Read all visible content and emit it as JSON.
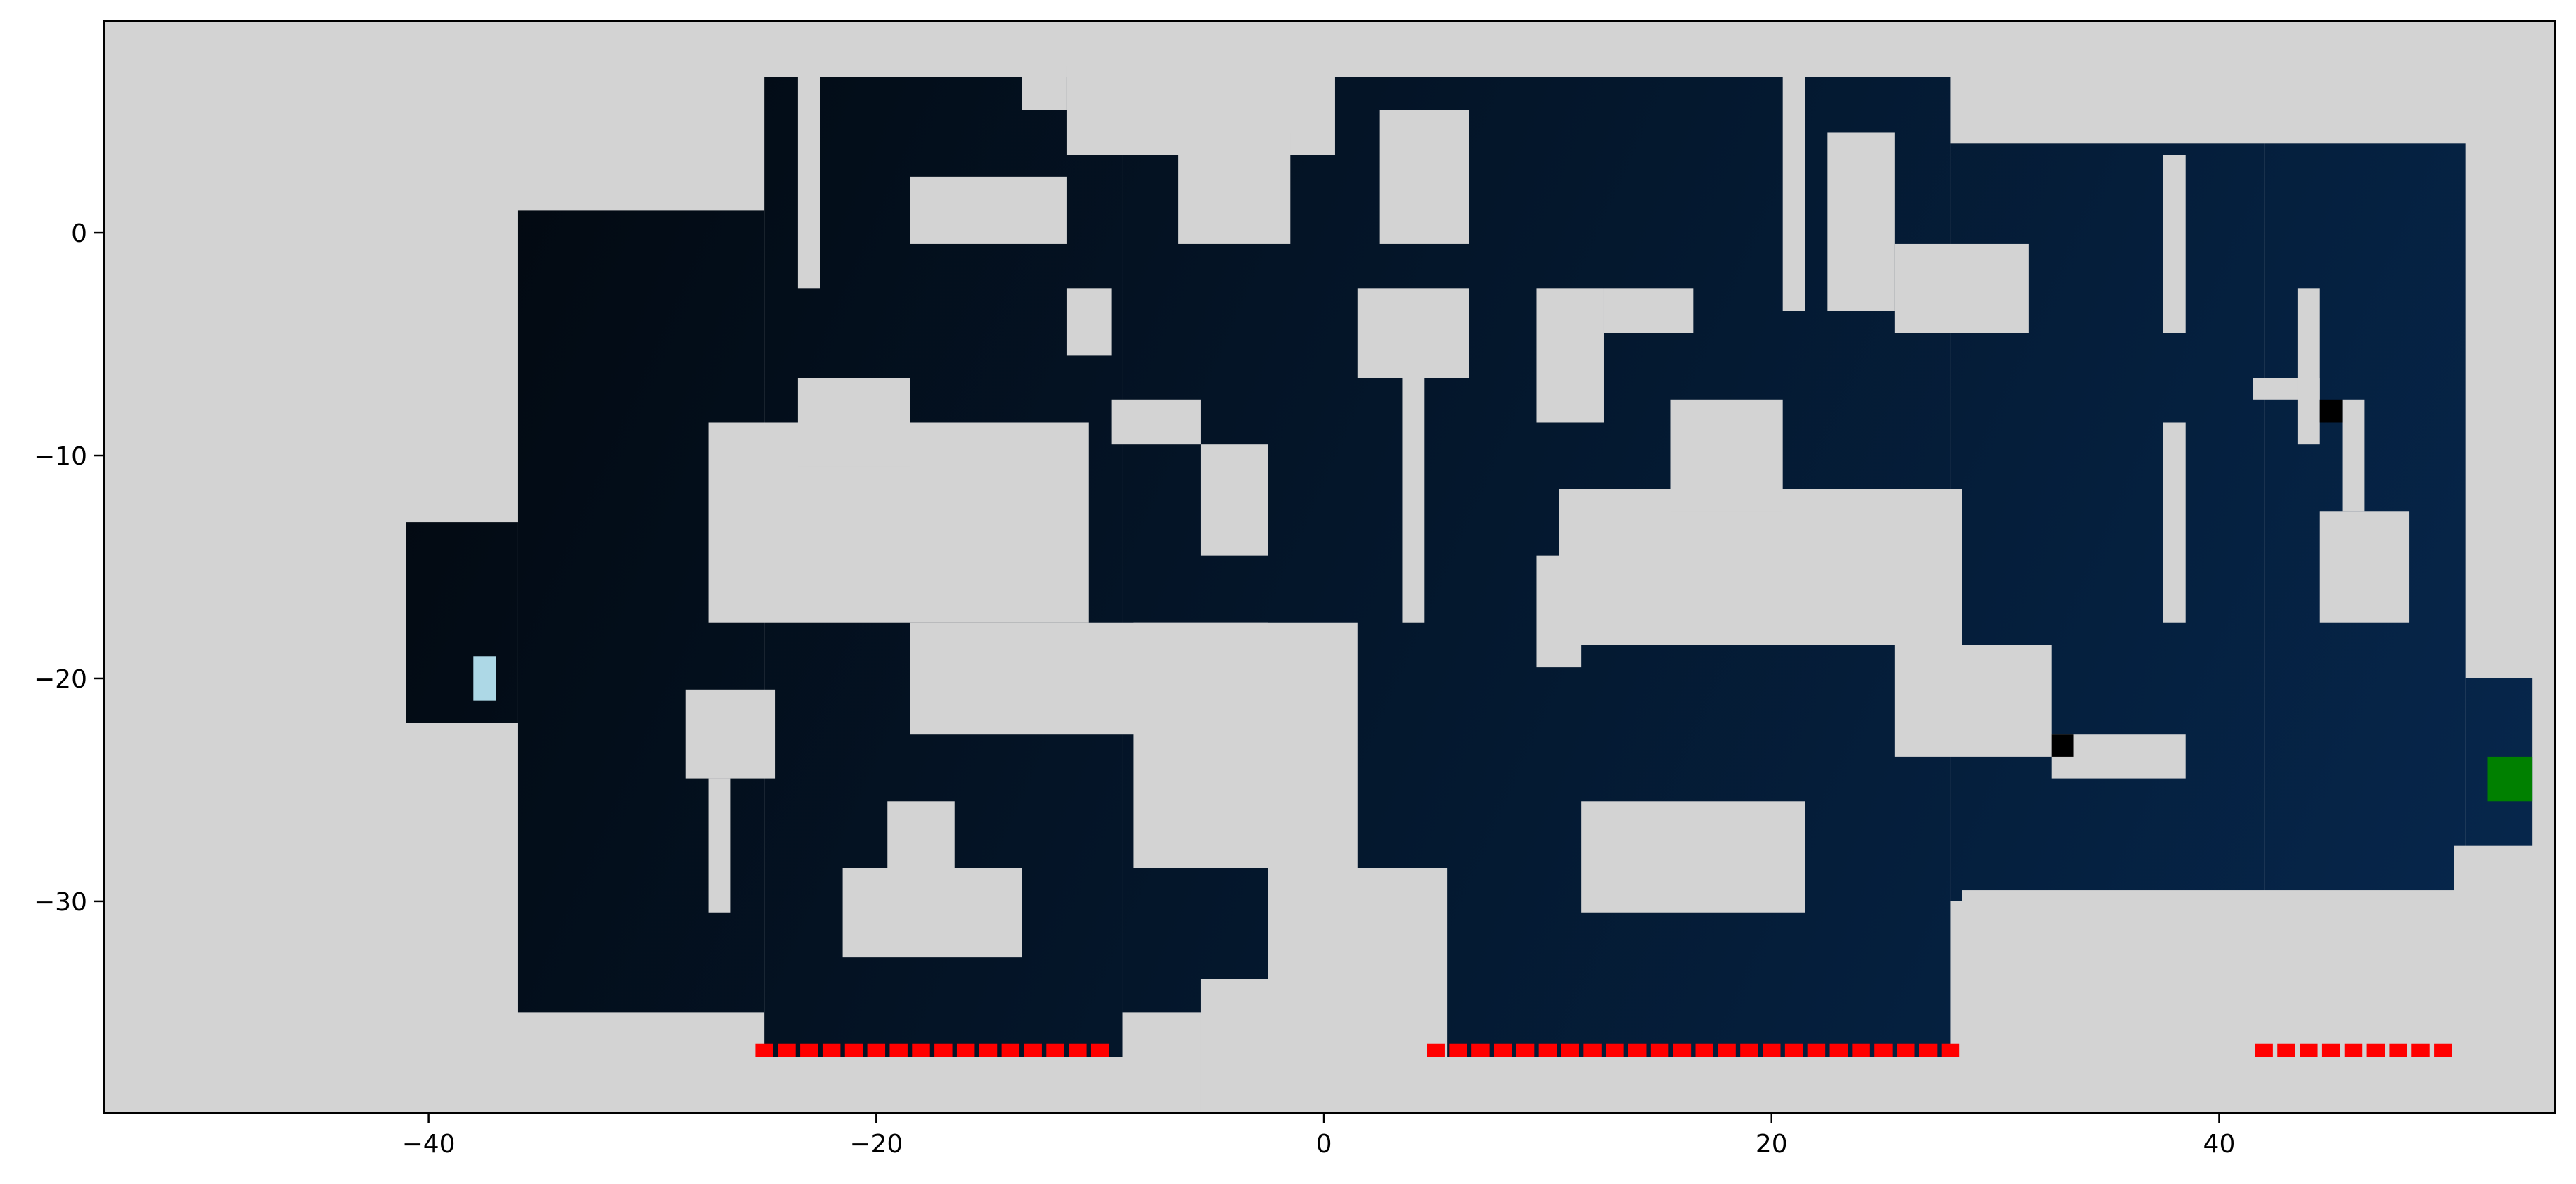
{
  "chart_data": {
    "type": "heatmap",
    "title": "",
    "xlabel": "",
    "ylabel": "",
    "xlim": [
      -54.5,
      55.0
    ],
    "ylim": [
      -39.5,
      9.5
    ],
    "grid": false,
    "x_ticks": [
      {
        "value": -40,
        "label": "−40"
      },
      {
        "value": -20,
        "label": "−20"
      },
      {
        "value": 0,
        "label": "0"
      },
      {
        "value": 20,
        "label": "20"
      },
      {
        "value": 40,
        "label": "40"
      }
    ],
    "y_ticks": [
      {
        "value": 0,
        "label": "0"
      },
      {
        "value": -10,
        "label": "−10"
      },
      {
        "value": -20,
        "label": "−20"
      },
      {
        "value": -30,
        "label": "−30"
      }
    ],
    "colors": {
      "background": "#d3d3d3",
      "free_space_left": "#020406",
      "free_space_right": "#06284f",
      "robot_start": "#add8e6",
      "goal": "#008000",
      "frontier": "#ff0000",
      "obstacle_marker": "#000000"
    },
    "free_regions": [
      {
        "x": [
          -25,
          -9
        ],
        "y": [
          -37,
          7
        ]
      },
      {
        "x": [
          -9,
          5
        ],
        "y": [
          -35,
          7
        ]
      },
      {
        "x": [
          5,
          28
        ],
        "y": [
          -37,
          7
        ]
      },
      {
        "x": [
          28,
          42
        ],
        "y": [
          -30,
          4
        ]
      },
      {
        "x": [
          42,
          51
        ],
        "y": [
          -37,
          4
        ]
      },
      {
        "x": [
          -36,
          -25
        ],
        "y": [
          -35,
          1
        ]
      },
      {
        "x": [
          -41,
          -36
        ],
        "y": [
          -22,
          -13
        ]
      },
      {
        "x": [
          51,
          54
        ],
        "y": [
          -28,
          -20
        ]
      }
    ],
    "occupied_blocks": [
      {
        "x": [
          -27.5,
          -10.5
        ],
        "y": [
          -17.5,
          -8.5
        ]
      },
      {
        "x": [
          -18.5,
          -2.5
        ],
        "y": [
          -22.5,
          -17.5
        ]
      },
      {
        "x": [
          -8.5,
          1.5
        ],
        "y": [
          -28.5,
          -17.5
        ]
      },
      {
        "x": [
          -9.5,
          -5.5
        ],
        "y": [
          -9.5,
          -7.5
        ]
      },
      {
        "x": [
          -5.5,
          -2.5
        ],
        "y": [
          -14.5,
          -9.5
        ]
      },
      {
        "x": [
          -23.5,
          -18.5
        ],
        "y": [
          -10.5,
          -6.5
        ]
      },
      {
        "x": [
          -28.5,
          -24.5
        ],
        "y": [
          -24.5,
          -20.5
        ]
      },
      {
        "x": [
          -27.5,
          -26.5
        ],
        "y": [
          -30.5,
          -24.5
        ]
      },
      {
        "x": [
          -21.5,
          -13.5
        ],
        "y": [
          -32.5,
          -28.5
        ]
      },
      {
        "x": [
          -19.5,
          -16.5
        ],
        "y": [
          -28.5,
          -25.5
        ]
      },
      {
        "x": [
          1.5,
          6.5
        ],
        "y": [
          -6.5,
          -2.5
        ]
      },
      {
        "x": [
          3.5,
          4.5
        ],
        "y": [
          -17.5,
          -6.5
        ]
      },
      {
        "x": [
          -11.5,
          0.5
        ],
        "y": [
          3.5,
          7.5
        ]
      },
      {
        "x": [
          -18.5,
          -11.5
        ],
        "y": [
          -0.5,
          2.5
        ]
      },
      {
        "x": [
          -11.5,
          -9.5
        ],
        "y": [
          -5.5,
          -2.5
        ]
      },
      {
        "x": [
          -6.5,
          -1.5
        ],
        "y": [
          -0.5,
          4.5
        ]
      },
      {
        "x": [
          2.5,
          6.5
        ],
        "y": [
          -0.5,
          5.5
        ]
      },
      {
        "x": [
          -23.5,
          -22.5
        ],
        "y": [
          -2.5,
          7.5
        ]
      },
      {
        "x": [
          -13.5,
          -11.5
        ],
        "y": [
          5.5,
          7.5
        ]
      },
      {
        "x": [
          9.5,
          12.5
        ],
        "y": [
          -8.5,
          -2.5
        ]
      },
      {
        "x": [
          12.5,
          16.5
        ],
        "y": [
          -4.5,
          -2.5
        ]
      },
      {
        "x": [
          10.5,
          28.5
        ],
        "y": [
          -18.5,
          -11.5
        ]
      },
      {
        "x": [
          9.5,
          11.5
        ],
        "y": [
          -19.5,
          -14.5
        ]
      },
      {
        "x": [
          15.5,
          20.5
        ],
        "y": [
          -12.5,
          -7.5
        ]
      },
      {
        "x": [
          25.5,
          32.5
        ],
        "y": [
          -23.5,
          -18.5
        ]
      },
      {
        "x": [
          11.5,
          21.5
        ],
        "y": [
          -30.5,
          -25.5
        ]
      },
      {
        "x": [
          20.5,
          21.5
        ],
        "y": [
          -3.5,
          7.5
        ]
      },
      {
        "x": [
          22.5,
          25.5
        ],
        "y": [
          -3.5,
          4.5
        ]
      },
      {
        "x": [
          25.5,
          31.5
        ],
        "y": [
          -4.5,
          -0.5
        ]
      },
      {
        "x": [
          28.5,
          50.5
        ],
        "y": [
          -37.5,
          -29.5
        ]
      },
      {
        "x": [
          32.5,
          38.5
        ],
        "y": [
          -24.5,
          -22.5
        ]
      },
      {
        "x": [
          37.5,
          38.5
        ],
        "y": [
          -17.5,
          -8.5
        ]
      },
      {
        "x": [
          37.5,
          38.5
        ],
        "y": [
          -4.5,
          3.5
        ]
      },
      {
        "x": [
          44.5,
          48.5
        ],
        "y": [
          -17.5,
          -12.5
        ]
      },
      {
        "x": [
          45.5,
          46.5
        ],
        "y": [
          -12.5,
          -7.5
        ]
      },
      {
        "x": [
          41.5,
          44.5
        ],
        "y": [
          -7.5,
          -6.5
        ]
      },
      {
        "x": [
          43.5,
          44.5
        ],
        "y": [
          -9.5,
          -2.5
        ]
      },
      {
        "x": [
          -5.5,
          5.5
        ],
        "y": [
          -39.5,
          -33.5
        ]
      },
      {
        "x": [
          -2.5,
          5.5
        ],
        "y": [
          -33.5,
          -28.5
        ]
      },
      {
        "x": [
          50.5,
          55.0
        ],
        "y": [
          -39.5,
          -27.5
        ]
      }
    ],
    "robot_start": {
      "x": -37.5,
      "y": -20
    },
    "goal": {
      "x": 53,
      "y": -24.5
    },
    "obstacle_markers": [
      {
        "x": 45,
        "y": -8
      },
      {
        "x": 33,
        "y": -23
      }
    ],
    "frontier_segments": [
      {
        "y": -36.7,
        "x_start": -25,
        "x_end": -10
      },
      {
        "y": -36.7,
        "x_start": 5,
        "x_end": 28
      },
      {
        "y": -36.7,
        "x_start": 42,
        "x_end": 50
      }
    ]
  }
}
